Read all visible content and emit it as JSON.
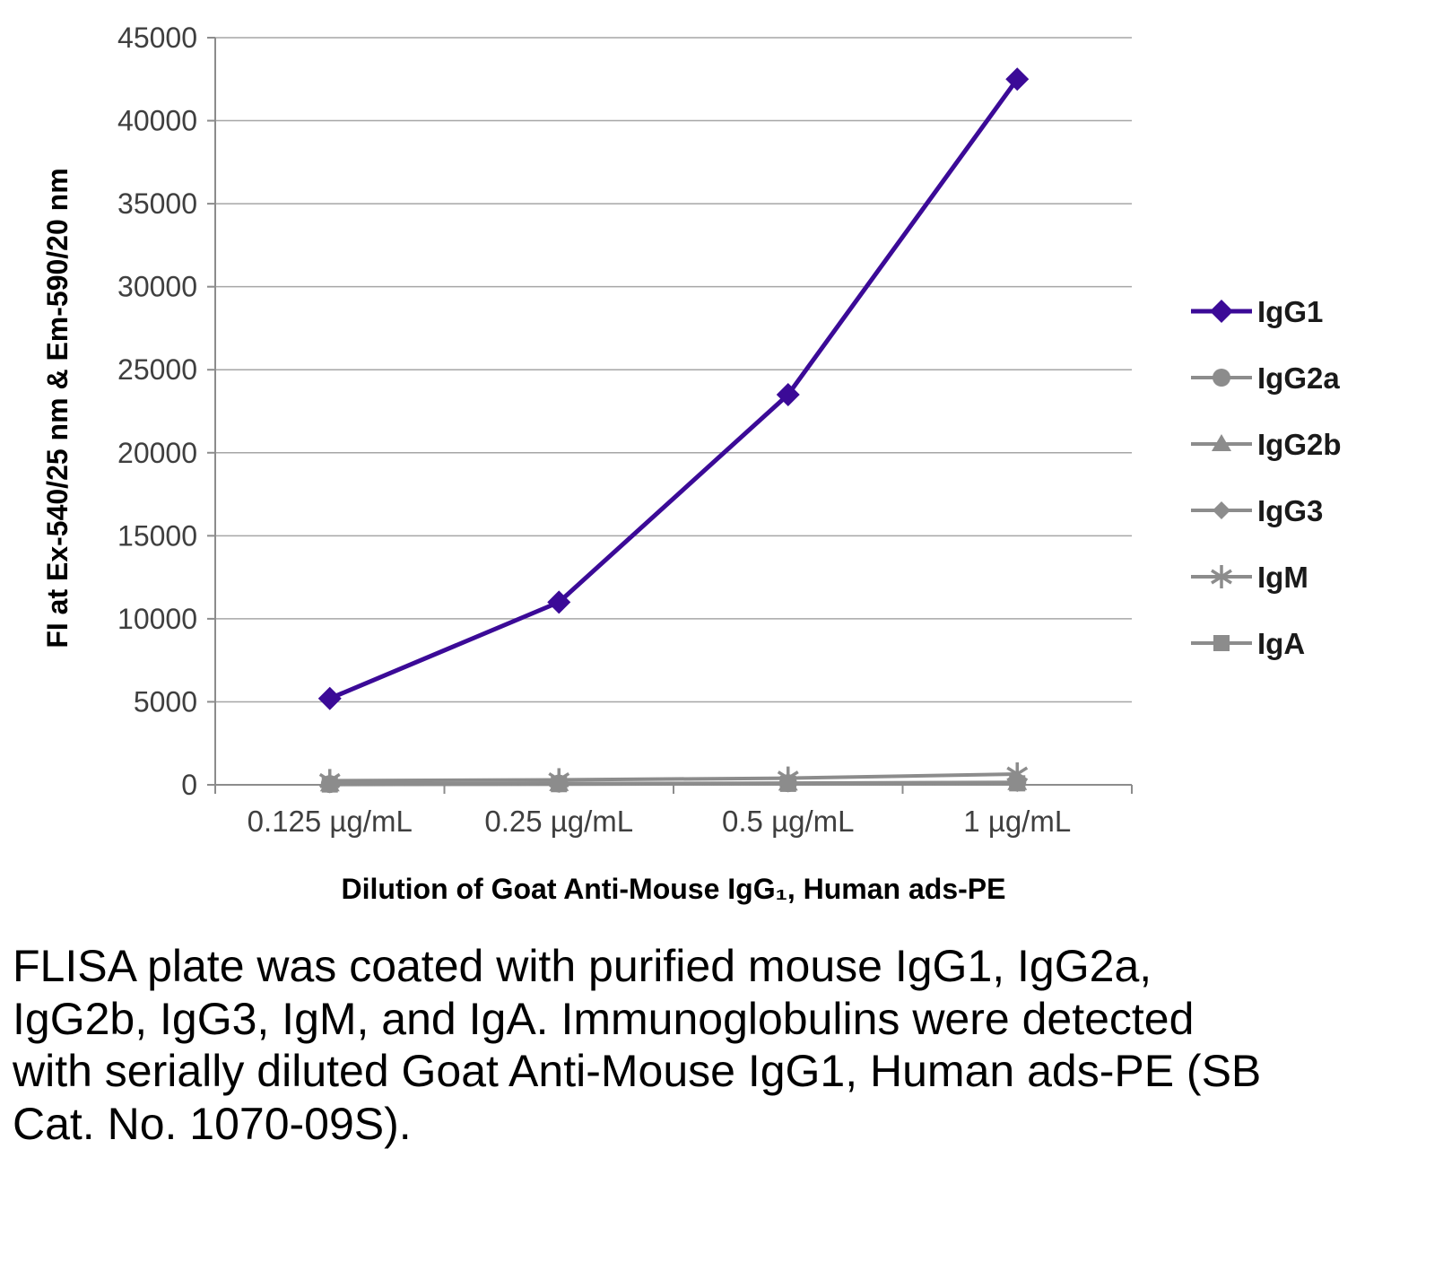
{
  "chart_data": {
    "type": "line",
    "categories": [
      "0.125 µg/mL",
      "0.25 µg/mL",
      "0.5 µg/mL",
      "1 µg/mL"
    ],
    "series": [
      {
        "name": "IgG1",
        "marker": "diamond",
        "color": "#3b0a97",
        "values": [
          5200,
          11000,
          23500,
          42500
        ]
      },
      {
        "name": "IgG2a",
        "marker": "circle",
        "color": "#8c8c8c",
        "values": [
          50,
          80,
          100,
          150
        ]
      },
      {
        "name": "IgG2b",
        "marker": "triangle",
        "color": "#8c8c8c",
        "values": [
          40,
          60,
          90,
          120
        ]
      },
      {
        "name": "IgG3",
        "marker": "diamond",
        "color": "#8c8c8c",
        "values": [
          30,
          50,
          80,
          100
        ]
      },
      {
        "name": "IgM",
        "marker": "star",
        "color": "#8c8c8c",
        "values": [
          250,
          300,
          400,
          650
        ]
      },
      {
        "name": "IgA",
        "marker": "square",
        "color": "#8c8c8c",
        "values": [
          20,
          40,
          60,
          90
        ]
      }
    ],
    "title": "",
    "xlabel": "Dilution of Goat Anti-Mouse IgG₁, Human ads-PE",
    "ylabel": "FI at Ex-540/25 nm & Em-590/20 nm",
    "ylim": [
      0,
      45000
    ],
    "ytick_step": 5000,
    "grid": "horizontal",
    "legend_position": "right",
    "gridline_color": "#a6a6a6",
    "axis_color": "#8c8c8c"
  },
  "caption": "FLISA plate was coated with purified mouse IgG1, IgG2a, IgG2b, IgG3, IgM, and IgA. Immunoglobulins were detected with serially diluted Goat Anti-Mouse IgG1, Human ads-PE (SB Cat. No. 1070-09S)."
}
